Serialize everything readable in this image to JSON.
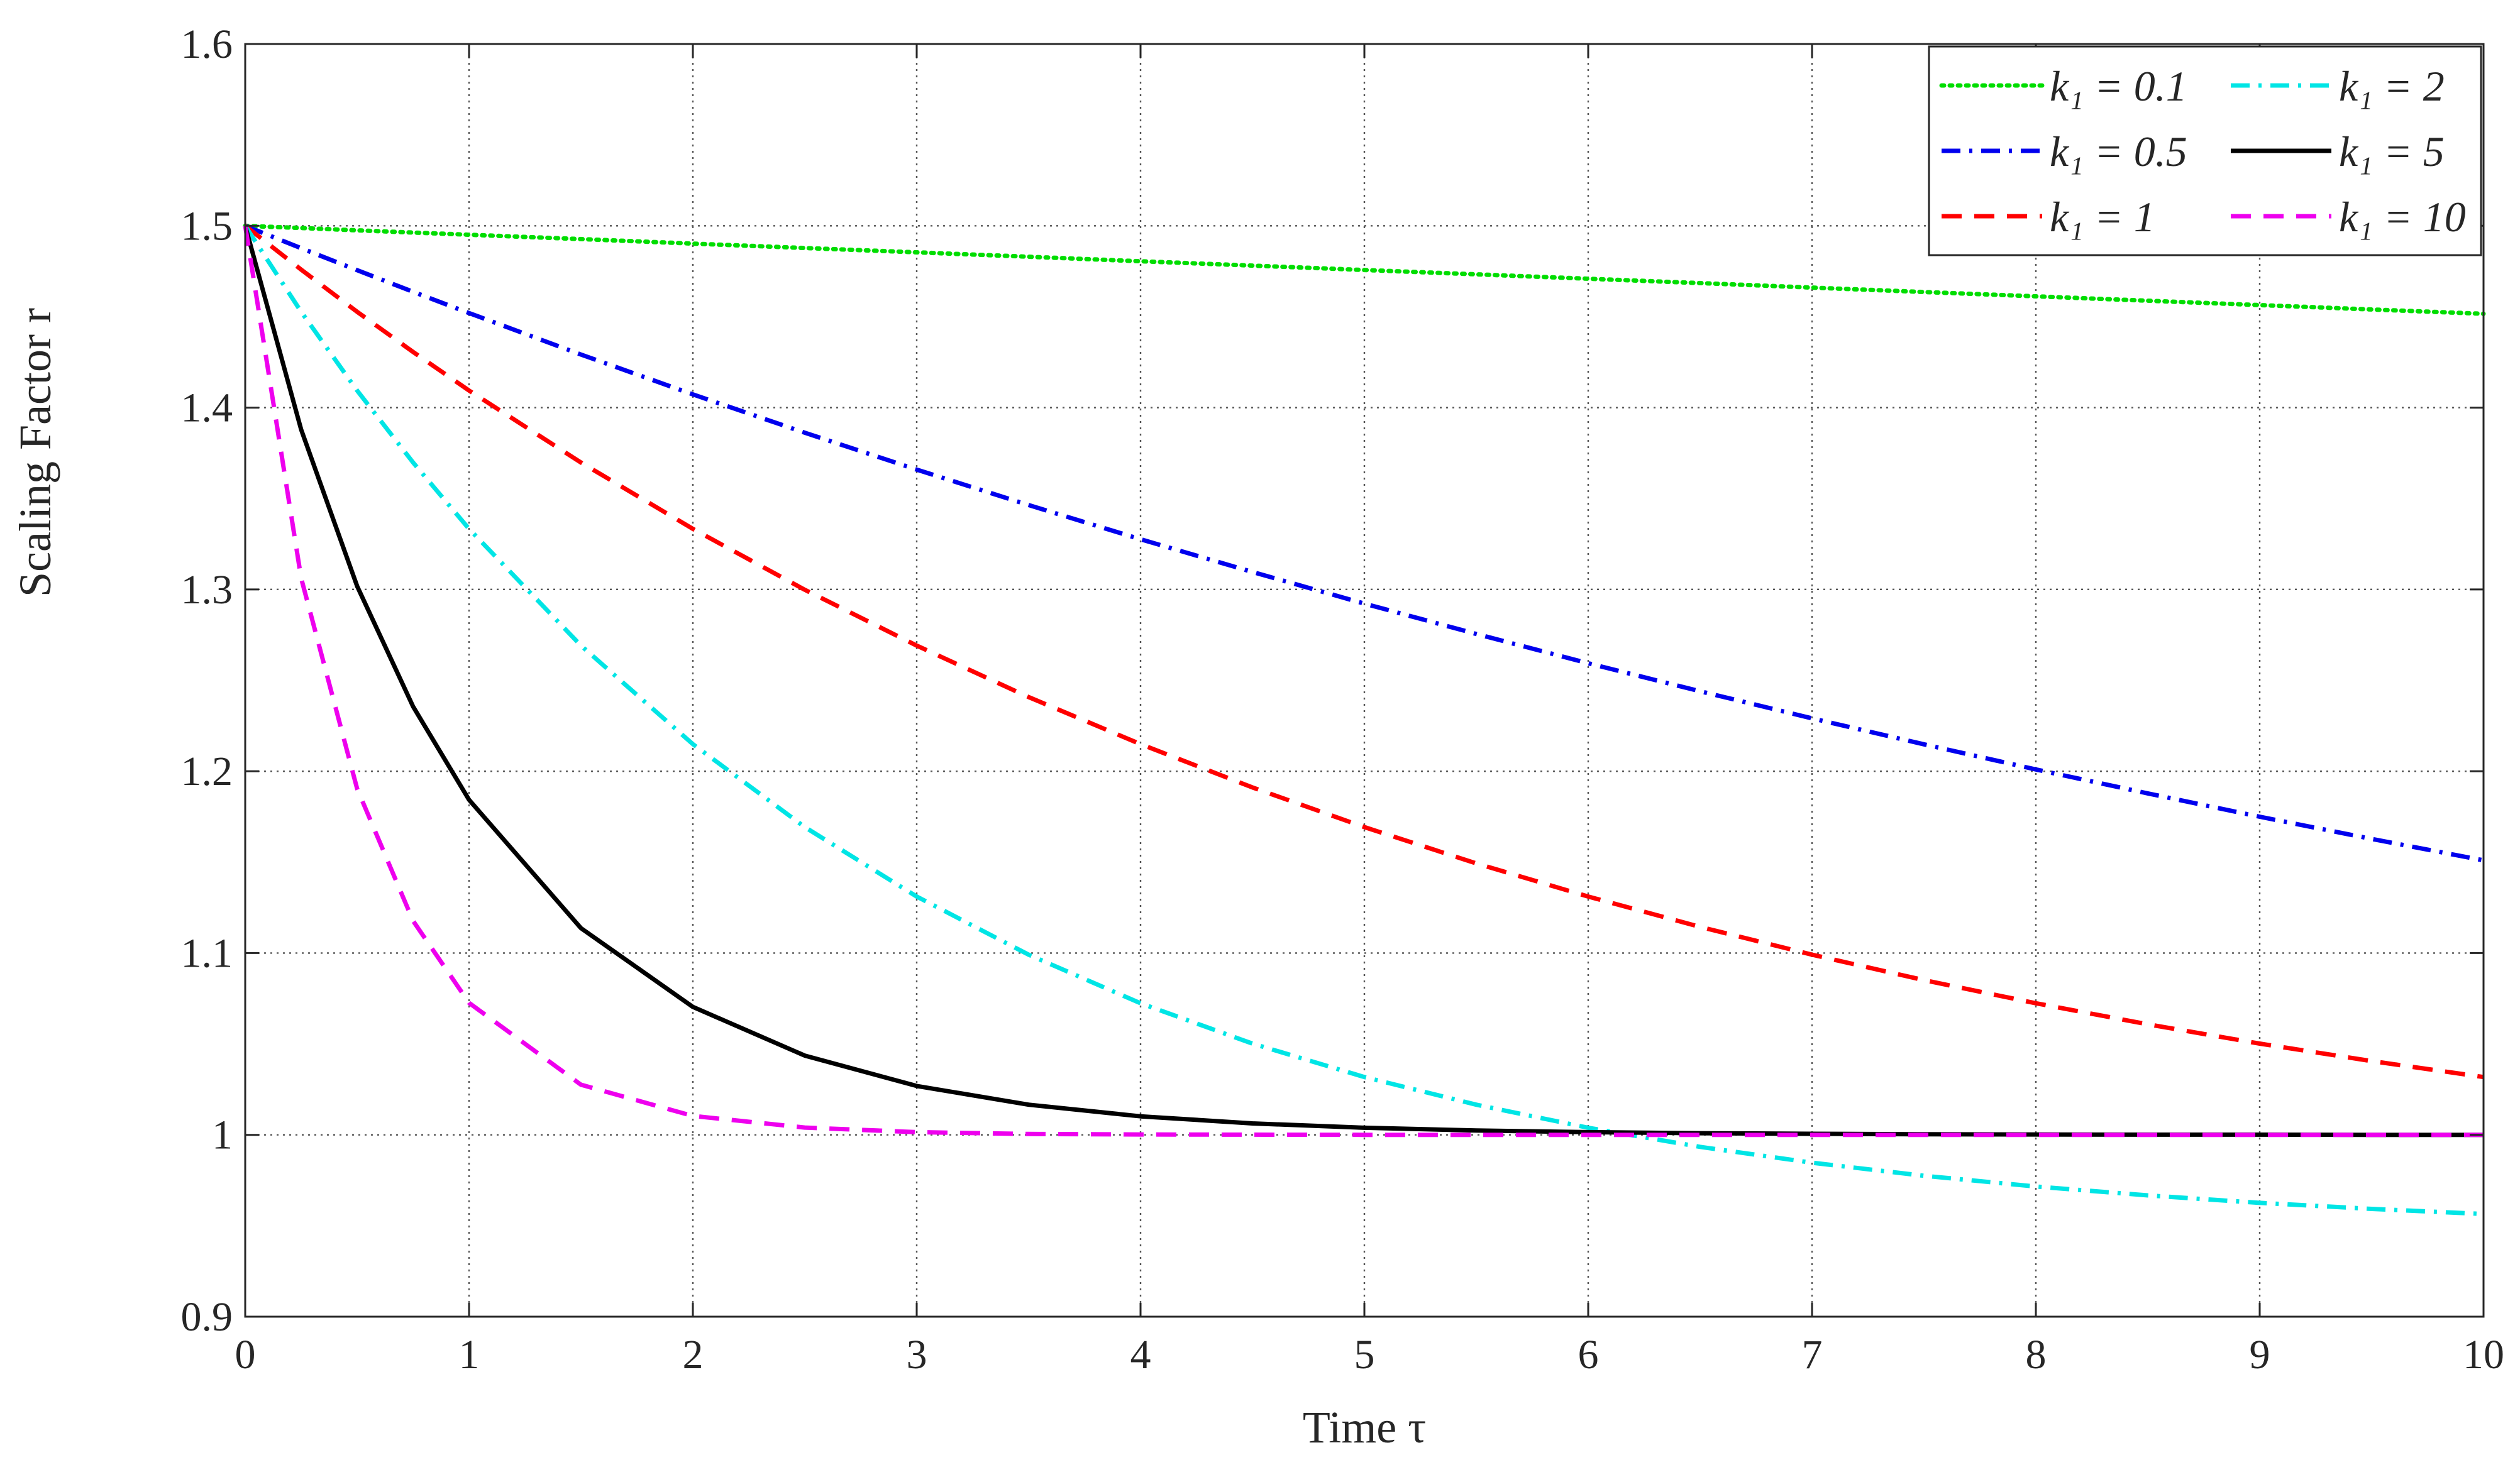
{
  "chart_data": {
    "type": "line",
    "title": "",
    "xlabel": "Time τ",
    "ylabel": "Scaling Factor r",
    "xlim": [
      0,
      10
    ],
    "ylim": [
      0.9,
      1.6
    ],
    "xticks": [
      0,
      1,
      2,
      3,
      4,
      5,
      6,
      7,
      8,
      9,
      10
    ],
    "xtick_labels": [
      "0",
      "1",
      "2",
      "3",
      "4",
      "5",
      "6",
      "7",
      "8",
      "9",
      "10"
    ],
    "yticks": [
      0.9,
      1.0,
      1.1,
      1.2,
      1.3,
      1.4,
      1.5,
      1.6
    ],
    "ytick_labels": [
      "0.9",
      "1",
      "1.1",
      "1.2",
      "1.3",
      "1.4",
      "1.5",
      "1.6"
    ],
    "grid": true,
    "legend_position": "top-right",
    "legend_columns": 2,
    "x": [
      0,
      0.25,
      0.5,
      0.75,
      1,
      1.5,
      2,
      2.5,
      3,
      3.5,
      4,
      4.5,
      5,
      5.5,
      6,
      6.5,
      7,
      7.5,
      8,
      8.5,
      9,
      9.5,
      10
    ],
    "series": [
      {
        "name": "k1 = 0.1",
        "legend_label": "k₁ = 0.1",
        "color": "#00dd00",
        "style": "dotted",
        "values": [
          1.5,
          1.4988,
          1.4975,
          1.4963,
          1.4951,
          1.4927,
          1.4902,
          1.4878,
          1.4854,
          1.483,
          1.4805,
          1.4781,
          1.4757,
          1.4733,
          1.4709,
          1.4685,
          1.466,
          1.4636,
          1.4612,
          1.4588,
          1.4564,
          1.454,
          1.4516
        ]
      },
      {
        "name": "k1 = 0.5",
        "legend_label": "k₁ = 0.5",
        "color": "#0000ee",
        "style": "dashdot",
        "values": [
          1.5,
          1.4877,
          1.4756,
          1.4637,
          1.452,
          1.4292,
          1.4073,
          1.3862,
          1.3659,
          1.3464,
          1.3276,
          1.3096,
          1.2922,
          1.2755,
          1.2594,
          1.244,
          1.2291,
          1.2148,
          1.201,
          1.1878,
          1.175,
          1.1628,
          1.151
        ]
      },
      {
        "name": "k1 = 1",
        "legend_label": "k₁ = 1",
        "color": "#ff0000",
        "style": "dashed",
        "values": [
          1.5,
          1.4759,
          1.4527,
          1.4306,
          1.4094,
          1.3698,
          1.3333,
          1.2998,
          1.2691,
          1.2408,
          1.2149,
          1.1911,
          1.1693,
          1.1493,
          1.1311,
          1.1144,
          1.0991,
          1.0851,
          1.0724,
          1.0608,
          1.0502,
          1.0406,
          1.0318
        ]
      },
      {
        "name": "k1 = 2",
        "legend_label": "k₁ = 2",
        "color": "#00e5e5",
        "style": "dashdot",
        "values": [
          1.5,
          1.4527,
          1.4094,
          1.3698,
          1.3333,
          1.2691,
          1.2149,
          1.1693,
          1.1311,
          1.0991,
          1.0724,
          1.0502,
          1.0318,
          1.0166,
          1.0039,
          0.9934,
          0.9847,
          0.9775,
          0.9716,
          0.9667,
          0.9626,
          0.9593,
          0.9565
        ]
      },
      {
        "name": "k1 = 5",
        "legend_label": "k₁ = 5",
        "color": "#000000",
        "style": "solid",
        "values": [
          1.5,
          1.3879,
          1.3018,
          1.2356,
          1.1843,
          1.1137,
          1.0704,
          1.0436,
          1.0269,
          1.0166,
          1.0102,
          1.0063,
          1.0039,
          1.0024,
          1.0015,
          1.0009,
          1.0006,
          1.0003,
          1.0002,
          1.0001,
          1.0001,
          1.0,
          1.0
        ]
      },
      {
        "name": "k1 = 10",
        "legend_label": "k₁ = 10",
        "color": "#ee00ee",
        "style": "dashed",
        "values": [
          1.5,
          1.3062,
          1.1904,
          1.1177,
          1.0726,
          1.0276,
          1.0104,
          1.004,
          1.0015,
          1.0005,
          1.0002,
          1.0001,
          1.0,
          1.0,
          1.0,
          1.0,
          1.0,
          1.0,
          1.0,
          1.0,
          1.0,
          1.0,
          1.0
        ]
      }
    ]
  }
}
